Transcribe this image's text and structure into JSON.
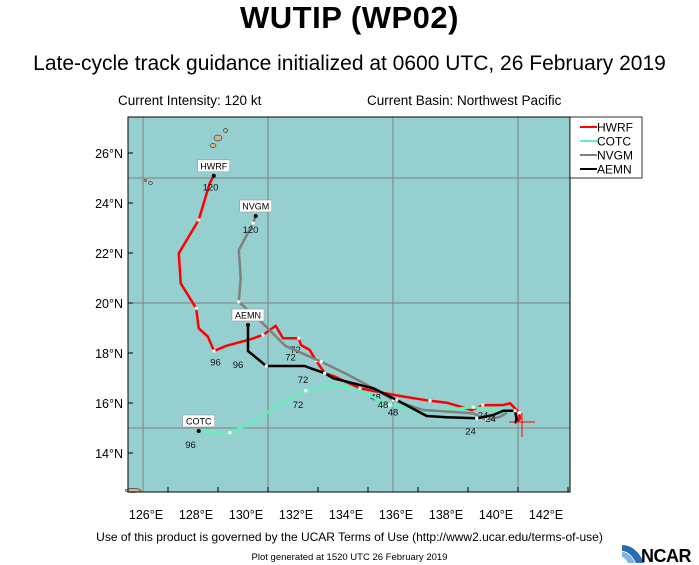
{
  "header": {
    "title": "WUTIP (WP02)",
    "subtitle": "Late-cycle track guidance initialized at 0600 UTC, 26 February 2019",
    "intensity": "Current Intensity: 120 kt",
    "basin": "Current Basin: Northwest Pacific"
  },
  "footer": {
    "terms": "Use of this product is governed by the UCAR Terms of Use (http://www2.ucar.edu/terms-of-use)",
    "generated": "Plot generated at 1520 UTC  26 February 2019",
    "logo": "NCAR"
  },
  "chart_data": {
    "type": "map-track",
    "lon_range": [
      124.4,
      142.08
    ],
    "lat_range": [
      12.44,
      27.44
    ],
    "grid_lon": [
      125,
      130,
      135,
      140
    ],
    "grid_lat": [
      15,
      20,
      25
    ],
    "lon_ticks": [
      {
        "v": 126,
        "label": "126°E"
      },
      {
        "v": 128,
        "label": "128°E"
      },
      {
        "v": 130,
        "label": "130°E"
      },
      {
        "v": 132,
        "label": "132°E"
      },
      {
        "v": 134,
        "label": "134°E"
      },
      {
        "v": 136,
        "label": "136°E"
      },
      {
        "v": 138,
        "label": "138°E"
      },
      {
        "v": 140,
        "label": "140°E"
      },
      {
        "v": 142,
        "label": "142°E"
      }
    ],
    "lat_ticks": [
      {
        "v": 14,
        "label": "14°N"
      },
      {
        "v": 16,
        "label": "16°N"
      },
      {
        "v": 18,
        "label": "18°N"
      },
      {
        "v": 20,
        "label": "20°N"
      },
      {
        "v": 22,
        "label": "22°N"
      },
      {
        "v": 24,
        "label": "24°N"
      },
      {
        "v": 26,
        "label": "26°N"
      }
    ],
    "colors": {
      "ocean": "#96cfcf",
      "land": "#d4b48c",
      "grid": "#808080"
    },
    "current_position": {
      "lon": 140.16,
      "lat": 15.24,
      "color": "#ff0000"
    },
    "legend": {
      "placement": "top-right, outside"
    },
    "series": [
      {
        "name": "HWRF",
        "color": "#ff0000",
        "track": [
          [
            139.97,
            15.25
          ],
          [
            140.08,
            15.39
          ],
          [
            140.05,
            15.61
          ],
          [
            139.68,
            15.99
          ],
          [
            139.41,
            15.92
          ],
          [
            138.59,
            15.91
          ],
          [
            138.15,
            15.72
          ],
          [
            137.15,
            16.01
          ],
          [
            136.48,
            16.09
          ],
          [
            135.28,
            16.28
          ],
          [
            134.61,
            16.41
          ],
          [
            133.68,
            16.59
          ],
          [
            132.61,
            17.08
          ],
          [
            132.27,
            17.19
          ],
          [
            131.93,
            17.69
          ],
          [
            131.67,
            18.12
          ],
          [
            131.32,
            18.32
          ],
          [
            131.23,
            18.59
          ],
          [
            130.6,
            18.59
          ],
          [
            130.31,
            19.09
          ],
          [
            129.8,
            18.72
          ],
          [
            129.2,
            18.52
          ],
          [
            128.33,
            18.29
          ],
          [
            127.84,
            18.08
          ],
          [
            127.6,
            18.65
          ],
          [
            127.23,
            18.99
          ],
          [
            127.13,
            19.79
          ],
          [
            126.51,
            20.79
          ],
          [
            126.43,
            21.99
          ],
          [
            127.23,
            23.32
          ],
          [
            127.67,
            24.79
          ],
          [
            127.83,
            25.09
          ]
        ],
        "hour_labels": [
          {
            "h": "24",
            "lon": 138.6,
            "lat": 15.78
          },
          {
            "h": "48",
            "lon": 134.3,
            "lat": 16.5
          },
          {
            "h": "72",
            "lon": 131.1,
            "lat": 18.4
          },
          {
            "h": "96",
            "lon": 127.9,
            "lat": 17.9
          },
          {
            "h": "120",
            "lon": 127.7,
            "lat": 24.9
          }
        ]
      },
      {
        "name": "COTC",
        "color": "#66eebb",
        "track": [
          [
            139.55,
            15.59
          ],
          [
            139.15,
            15.72
          ],
          [
            138.21,
            15.83
          ],
          [
            136.88,
            15.72
          ],
          [
            136.08,
            15.65
          ],
          [
            134.88,
            15.92
          ],
          [
            133.41,
            16.59
          ],
          [
            132.53,
            16.69
          ],
          [
            131.51,
            16.49
          ],
          [
            130.4,
            15.92
          ],
          [
            129.53,
            15.29
          ],
          [
            128.47,
            14.81
          ],
          [
            127.23,
            14.88
          ]
        ],
        "hour_labels": [
          {
            "h": "72",
            "lon": 131.2,
            "lat": 16.2
          },
          {
            "h": "96",
            "lon": 126.9,
            "lat": 14.6
          }
        ]
      },
      {
        "name": "NVGM",
        "color": "#808080",
        "track": [
          [
            139.55,
            15.61
          ],
          [
            139.28,
            15.45
          ],
          [
            138.75,
            15.32
          ],
          [
            138.21,
            15.59
          ],
          [
            136.21,
            15.72
          ],
          [
            135.01,
            16.12
          ],
          [
            134.21,
            16.59
          ],
          [
            133.08,
            17.19
          ],
          [
            132.13,
            17.65
          ],
          [
            130.69,
            18.29
          ],
          [
            129.73,
            19.25
          ],
          [
            128.83,
            20.05
          ],
          [
            128.91,
            20.99
          ],
          [
            128.83,
            22.12
          ],
          [
            129.4,
            23.19
          ],
          [
            129.51,
            23.48
          ]
        ],
        "hour_labels": [
          {
            "h": "24",
            "lon": 138.9,
            "lat": 15.65
          },
          {
            "h": "48",
            "lon": 134.6,
            "lat": 16.2
          },
          {
            "h": "72",
            "lon": 130.9,
            "lat": 18.1
          },
          {
            "h": "120",
            "lon": 129.3,
            "lat": 23.2
          }
        ]
      },
      {
        "name": "AEMN",
        "color": "#000000",
        "track": [
          [
            139.88,
            15.19
          ],
          [
            139.95,
            15.35
          ],
          [
            139.88,
            15.69
          ],
          [
            139.41,
            15.69
          ],
          [
            139.01,
            15.52
          ],
          [
            138.35,
            15.39
          ],
          [
            137.15,
            15.43
          ],
          [
            136.35,
            15.48
          ],
          [
            135.15,
            16.12
          ],
          [
            134.21,
            16.59
          ],
          [
            132.61,
            16.99
          ],
          [
            132.27,
            17.19
          ],
          [
            131.71,
            17.39
          ],
          [
            131.47,
            17.48
          ],
          [
            129.93,
            17.48
          ],
          [
            129.2,
            18.08
          ],
          [
            129.2,
            19.12
          ]
        ],
        "hour_labels": [
          {
            "h": "24",
            "lon": 138.1,
            "lat": 15.15
          },
          {
            "h": "48",
            "lon": 135.0,
            "lat": 15.9
          },
          {
            "h": "72",
            "lon": 131.4,
            "lat": 17.2
          },
          {
            "h": "96",
            "lon": 128.8,
            "lat": 17.8
          }
        ]
      }
    ]
  }
}
